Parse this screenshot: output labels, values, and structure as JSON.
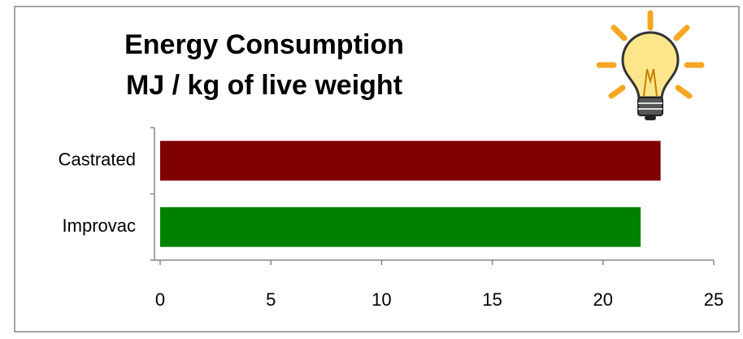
{
  "chart_data": {
    "type": "hbar",
    "title": "Energy Consumption",
    "subtitle": "MJ / kg of live weight",
    "categories": [
      "Castrated",
      "Improvac"
    ],
    "values": [
      22.6,
      21.7
    ],
    "colors": [
      "#7f0000",
      "#008000"
    ],
    "xlim": [
      0,
      25
    ],
    "xticks": [
      0,
      5,
      10,
      15,
      20,
      25
    ]
  }
}
